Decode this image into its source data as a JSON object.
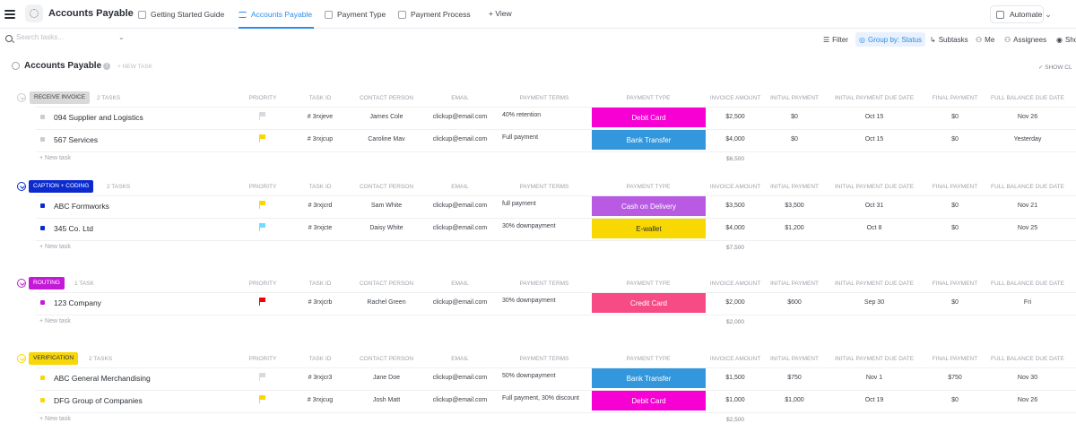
{
  "header": {
    "title": "Accounts Payable",
    "tabs": [
      {
        "label": "Getting Started Guide",
        "active": false
      },
      {
        "label": "Accounts Payable",
        "active": true
      },
      {
        "label": "Payment Type",
        "active": false
      },
      {
        "label": "Payment Process",
        "active": false
      }
    ],
    "add_view": "+ View",
    "automate": "Automate"
  },
  "toolbar": {
    "search_placeholder": "Search tasks...",
    "filter": "Filter",
    "group_by": "Group by: Status",
    "subtasks": "Subtasks",
    "me": "Me",
    "assignees": "Assignees",
    "show": "Sho"
  },
  "list": {
    "title": "Accounts Payable",
    "new_task": "+ NEW TASK",
    "show_closed": "SHOW CL"
  },
  "columns": {
    "priority": "PRIORITY",
    "task_id": "TASK ID",
    "contact": "CONTACT PERSON",
    "email": "EMAIL",
    "terms": "PAYMENT TERMS",
    "ptype": "PAYMENT TYPE",
    "invoice": "INVOICE AMOUNT",
    "initial": "INITIAL PAYMENT",
    "initial_due": "INITIAL PAYMENT DUE DATE",
    "final": "FINAL PAYMENT",
    "balance_due": "FULL BALANCE DUE DATE"
  },
  "new_task_label": "+ New task",
  "colors": {
    "debit_card": "#f700d4",
    "bank_transfer": "#3397dd",
    "cash_on_delivery": "#b95ae3",
    "e_wallet": "#f8d800",
    "credit_card": "#f64b84",
    "accent": "#2d8ee8"
  },
  "groups": [
    {
      "status": "RECEIVE INVOICE",
      "count": "2 TASKS",
      "pill_bg": "#d9d9d9",
      "pill_fg": "#3c4048",
      "square": "#c9cbcf",
      "sum": "$6,500",
      "tasks": [
        {
          "name": "094 Supplier and Logistics",
          "priority": "none",
          "id": "# 3rxjeve",
          "contact": "James Cole",
          "email": "clickup@email.com",
          "terms": "40% retention",
          "ptype": "Debit Card",
          "ptype_color": "#f700d4",
          "ptype_fg": "#ffffff",
          "invoice": "$2,500",
          "initial": "$0",
          "initial_due": "Oct 15",
          "final": "$0",
          "balance_due": "Nov 26"
        },
        {
          "name": "567 Services",
          "priority": "normal",
          "id": "# 3rxjcup",
          "contact": "Caroline Mav",
          "email": "clickup@email.com",
          "terms": "Full payment",
          "ptype": "Bank Transfer",
          "ptype_color": "#3397dd",
          "ptype_fg": "#ffffff",
          "invoice": "$4,000",
          "initial": "$0",
          "initial_due": "Oct 15",
          "final": "$0",
          "balance_due": "Yesterday"
        }
      ]
    },
    {
      "status": "CAPTION + CODING",
      "count": "2 TASKS",
      "pill_bg": "#0b2bcf",
      "pill_fg": "#ffffff",
      "square": "#0b2bcf",
      "sum": "$7,500",
      "tasks": [
        {
          "name": "ABC Formworks",
          "priority": "normal",
          "id": "# 3rxjcrd",
          "contact": "Sam White",
          "email": "clickup@email.com",
          "terms": "full payment",
          "ptype": "Cash on Delivery",
          "ptype_color": "#b95ae3",
          "ptype_fg": "#ffffff",
          "invoice": "$3,500",
          "initial": "$3,500",
          "initial_due": "Oct 31",
          "final": "$0",
          "balance_due": "Nov 21"
        },
        {
          "name": "345 Co. Ltd",
          "priority": "low",
          "id": "# 3rxjcte",
          "contact": "Daisy White",
          "email": "clickup@email.com",
          "terms": "30% downpayment",
          "ptype": "E-wallet",
          "ptype_color": "#f8d800",
          "ptype_fg": "#292d34",
          "invoice": "$4,000",
          "initial": "$1,200",
          "initial_due": "Oct 8",
          "final": "$0",
          "balance_due": "Nov 25"
        }
      ]
    },
    {
      "status": "ROUTING",
      "count": "1 TASK",
      "pill_bg": "#c41ad8",
      "pill_fg": "#ffffff",
      "square": "#c41ad8",
      "sum": "$2,000",
      "tasks": [
        {
          "name": "123 Company",
          "priority": "urgent",
          "id": "# 3rxjcrb",
          "contact": "Rachel Green",
          "email": "clickup@email.com",
          "terms": "30% downpayment",
          "ptype": "Credit Card",
          "ptype_color": "#f64b84",
          "ptype_fg": "#ffffff",
          "invoice": "$2,000",
          "initial": "$600",
          "initial_due": "Sep 30",
          "final": "$0",
          "balance_due": "Fri"
        }
      ]
    },
    {
      "status": "VERIFICATION",
      "count": "2 TASKS",
      "pill_bg": "#f7d70a",
      "pill_fg": "#292d34",
      "square": "#f7d70a",
      "sum": "$2,500",
      "tasks": [
        {
          "name": "ABC General Merchandising",
          "priority": "none",
          "id": "# 3rxjcr3",
          "contact": "Jane Doe",
          "email": "clickup@email.com",
          "terms": "50% downpayment",
          "ptype": "Bank Transfer",
          "ptype_color": "#3397dd",
          "ptype_fg": "#ffffff",
          "invoice": "$1,500",
          "initial": "$750",
          "initial_due": "Nov 1",
          "final": "$750",
          "balance_due": "Nov 30"
        },
        {
          "name": "DFG Group of Companies",
          "priority": "normal",
          "id": "# 3rxjcug",
          "contact": "Josh Matt",
          "email": "clickup@email.com",
          "terms": "Full payment, 30% discount",
          "ptype": "Debit Card",
          "ptype_color": "#f700d4",
          "ptype_fg": "#ffffff",
          "invoice": "$1,000",
          "initial": "$1,000",
          "initial_due": "Oct 19",
          "final": "$0",
          "balance_due": "Nov 26"
        }
      ]
    }
  ]
}
